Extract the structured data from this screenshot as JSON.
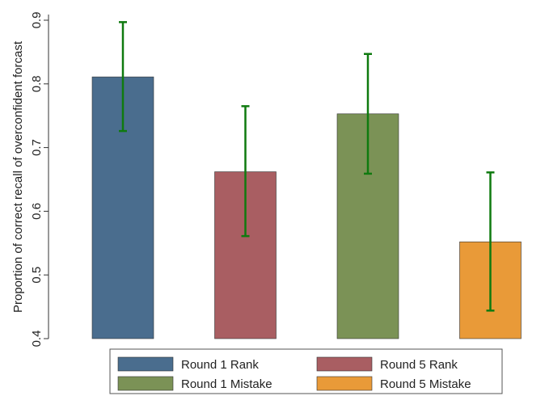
{
  "chart_data": {
    "type": "bar",
    "title": "",
    "xlabel": "",
    "ylabel": "Proportion of correct recall of overconfident forcast",
    "ylim": [
      0.4,
      0.9
    ],
    "yticks": [
      "0.4",
      "0.5",
      "0.6",
      "0.7",
      "0.8",
      "0.9"
    ],
    "grid": false,
    "legend_position": "bottom",
    "series": [
      {
        "name": "Round 1 Rank",
        "value": 0.811,
        "ci_low": 0.726,
        "ci_high": 0.897,
        "color": "#4a6d8e"
      },
      {
        "name": "Round 5 Rank",
        "value": 0.662,
        "ci_low": 0.561,
        "ci_high": 0.765,
        "color": "#a95e62"
      },
      {
        "name": "Round 1 Mistake",
        "value": 0.753,
        "ci_low": 0.659,
        "ci_high": 0.847,
        "color": "#7b9256"
      },
      {
        "name": "Round 5 Mistake",
        "value": 0.552,
        "ci_low": 0.444,
        "ci_high": 0.661,
        "color": "#e99a38"
      }
    ],
    "error_bar_color": "#0f7a0f"
  }
}
